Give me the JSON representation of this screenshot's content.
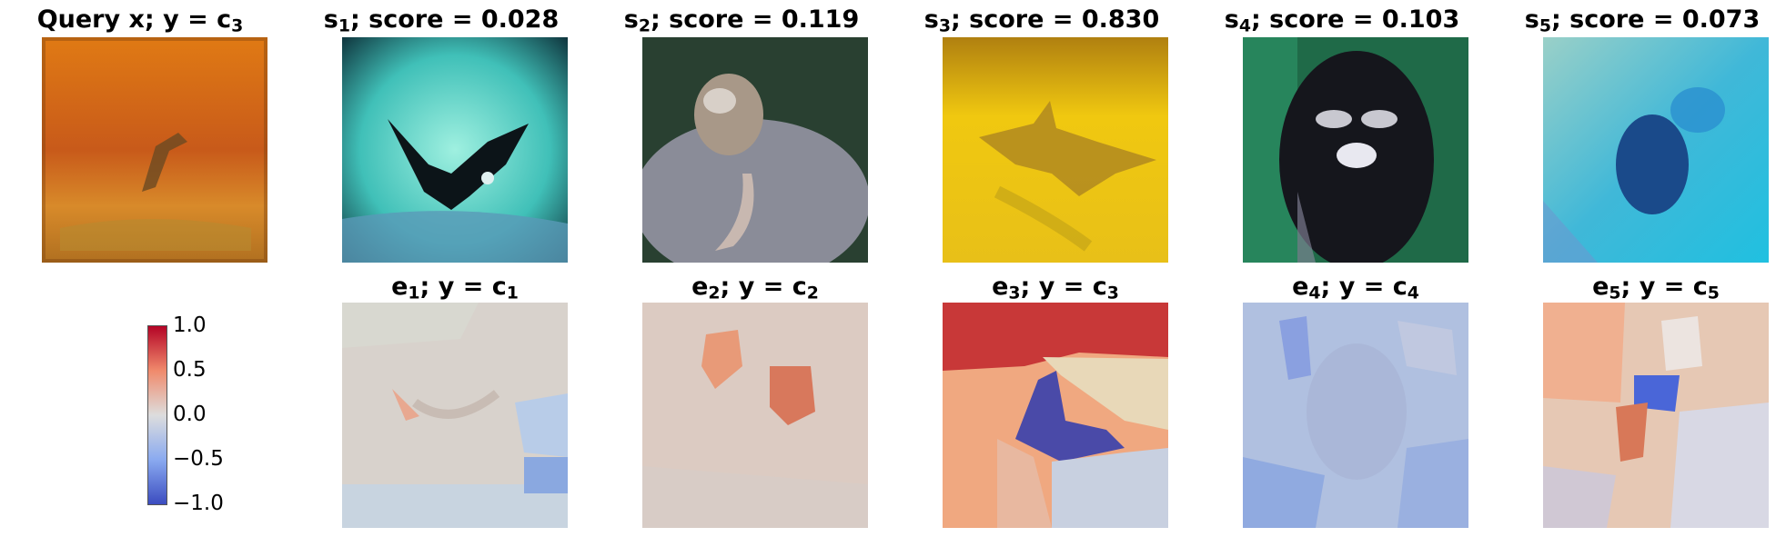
{
  "query": {
    "label": "Query x",
    "class": "3"
  },
  "samples": [
    {
      "index": "1",
      "score": "0.028",
      "class": "1"
    },
    {
      "index": "2",
      "score": "0.119",
      "class": "2"
    },
    {
      "index": "3",
      "score": "0.830",
      "class": "3"
    },
    {
      "index": "4",
      "score": "0.103",
      "class": "4"
    },
    {
      "index": "5",
      "score": "0.073",
      "class": "5"
    }
  ],
  "colorbar": {
    "ticks": [
      "1.0",
      "0.5",
      "0.0",
      "−0.5",
      "−1.0"
    ],
    "colors": {
      "high": "#b40426",
      "mid": "#dddddd",
      "low": "#3b4cc0"
    }
  }
}
